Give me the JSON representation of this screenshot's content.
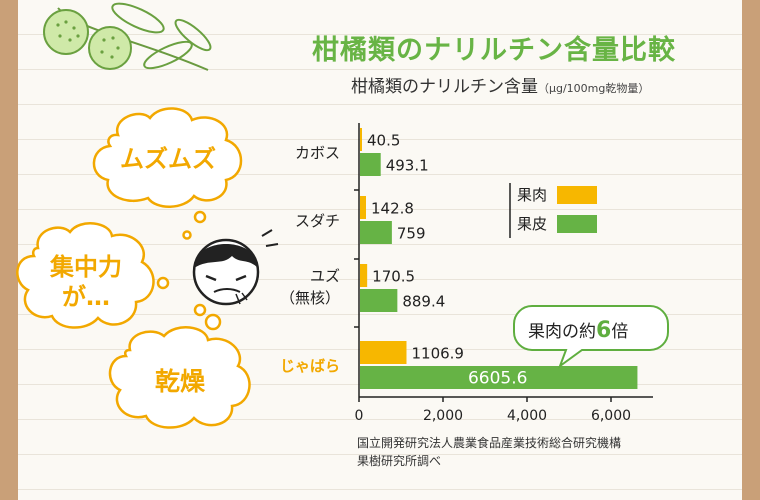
{
  "title": "柑橘類のナリルチン含量比較",
  "subtitle": "柑橘類のナリルチン含量",
  "unit": "（μg/100mg乾物量）",
  "thoughts": {
    "cloud1": "ムズムズ",
    "cloud2_line1": "集中力",
    "cloud2_line2": "が…",
    "cloud3": "乾燥"
  },
  "callout": {
    "text": "果肉の約",
    "number": "6",
    "suffix": "倍"
  },
  "source": {
    "line1": "国立開発研究法人農業食品産業技術総合研究機構",
    "line2": "果樹研究所調べ"
  },
  "colors": {
    "flesh": "#f7b700",
    "peel": "#66b345",
    "title": "#68b445",
    "highlight": "#f2a800"
  },
  "chart_data": {
    "type": "bar",
    "orientation": "horizontal",
    "categories": [
      "カボス",
      "スダチ",
      "ユズ\n（無核）",
      "じゃばら"
    ],
    "series": [
      {
        "name": "果肉",
        "values": [
          40.5,
          142.8,
          170.5,
          1106.9
        ]
      },
      {
        "name": "果皮",
        "values": [
          493.1,
          759,
          889.4,
          6605.6
        ]
      }
    ],
    "value_labels": [
      [
        "40.5",
        "142.8",
        "170.5",
        "1106.9"
      ],
      [
        "493.1",
        "759",
        "889.4",
        "6605.6"
      ]
    ],
    "xlim": [
      0,
      7000
    ],
    "xticks": [
      "0",
      "2,000",
      "4,000",
      "6,000"
    ],
    "xtick_values": [
      0,
      2000,
      4000,
      6000
    ],
    "legend": "right",
    "highlight_category": "じゃばら",
    "grid": false
  }
}
